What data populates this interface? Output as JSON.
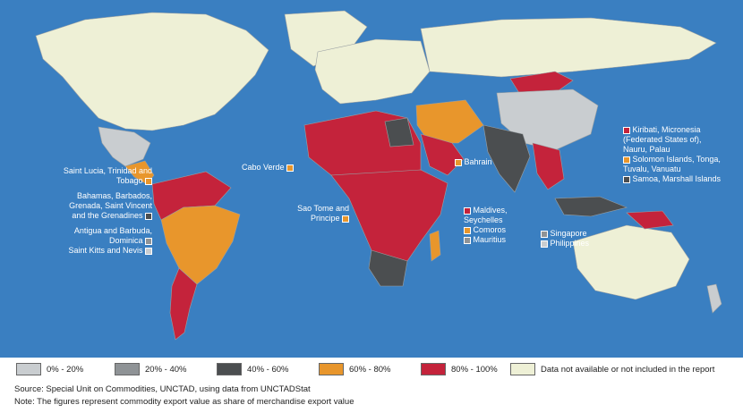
{
  "colors": {
    "ocean": "#3a7fc1",
    "bin_0_20": "#c9cdd0",
    "bin_20_40": "#8f9396",
    "bin_40_60": "#4b4e50",
    "bin_60_80": "#e8962c",
    "bin_80_100": "#c4233b",
    "no_data": "#eef0d6",
    "border": "#9aa0a3"
  },
  "legend": [
    {
      "label": "0% - 20%",
      "color_key": "bin_0_20"
    },
    {
      "label": "20% - 40%",
      "color_key": "bin_20_40"
    },
    {
      "label": "40% - 60%",
      "color_key": "bin_40_60"
    },
    {
      "label": "60% - 80%",
      "color_key": "bin_60_80"
    },
    {
      "label": "80% - 100%",
      "color_key": "bin_80_100"
    },
    {
      "label": "Data not available or not included in the report",
      "color_key": "no_data"
    }
  ],
  "callouts": {
    "caribbean": [
      {
        "text": "Saint Lucia, Trinidad and Tobago",
        "color_key": "bin_60_80"
      },
      {
        "text": "Bahamas, Barbados, Grenada, Saint Vincent and the Grenadines",
        "color_key": "bin_40_60"
      },
      {
        "text": "Antigua and Barbuda, Dominica",
        "color_key": "bin_20_40"
      },
      {
        "text": "Saint Kitts and Nevis",
        "color_key": "bin_0_20"
      }
    ],
    "cabo_verde": {
      "text": "Cabo Verde",
      "color_key": "bin_60_80"
    },
    "sao_tome": {
      "text": "Sao Tome and Principe",
      "color_key": "bin_60_80"
    },
    "bahrain": {
      "text": "Bahrain",
      "color_key": "bin_60_80"
    },
    "indian_ocean": [
      {
        "text": "Maldives, Seychelles",
        "color_key": "bin_80_100"
      },
      {
        "text": "Comoros",
        "color_key": "bin_60_80"
      },
      {
        "text": "Mauritius",
        "color_key": "bin_20_40"
      }
    ],
    "asia_islands": [
      {
        "text": "Singapore",
        "color_key": "bin_20_40"
      },
      {
        "text": "Philippines",
        "color_key": "bin_0_20"
      }
    ],
    "pacific": [
      {
        "text": "Kiribati, Micronesia (Federated States of), Nauru, Palau",
        "color_key": "bin_80_100"
      },
      {
        "text": "Solomon Islands, Tonga, Tuvalu, Vanuatu",
        "color_key": "bin_60_80"
      },
      {
        "text": "Samoa, Marshall Islands",
        "color_key": "bin_40_60"
      }
    ]
  },
  "footer": {
    "source": "Source: Special Unit on Commodities, UNCTAD, using data from UNCTADStat",
    "note": "Note: The figures represent commodity export value as share of merchandise export value"
  }
}
